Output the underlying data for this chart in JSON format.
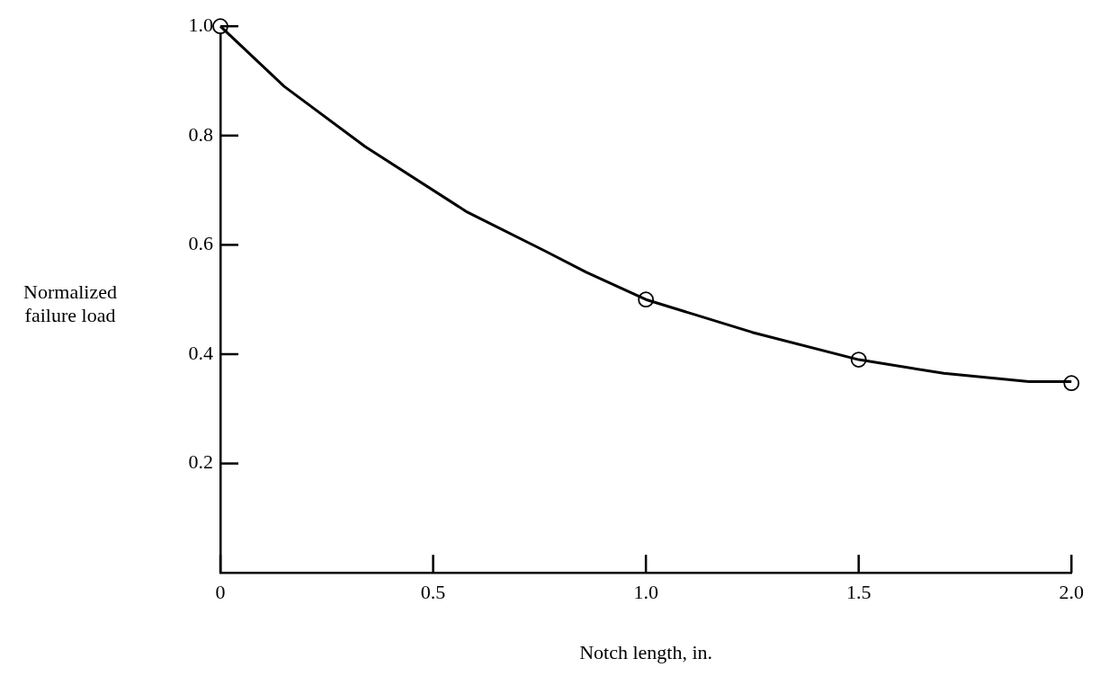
{
  "chart_data": {
    "type": "line",
    "xlabel": "Notch length, in.",
    "ylabel": "Normalized failure load",
    "xlim": [
      0,
      2
    ],
    "xticks": [
      0,
      0.5,
      {
        "value": 1,
        "label": "1.0"
      },
      1.5,
      {
        "value": 2,
        "label": "2.0"
      }
    ],
    "ylim": [
      0,
      1
    ],
    "yticks": [
      0.2,
      0.4,
      0.6,
      0.8,
      {
        "value": 1,
        "label": "1.0"
      }
    ],
    "grid": false,
    "legend": false,
    "series": [
      {
        "color": "#000000",
        "marker": "none",
        "line_style": "solid",
        "x": [
          0,
          0.15,
          0.34,
          0.58,
          0.76,
          0.86,
          1.0,
          1.25,
          1.5,
          1.7,
          1.9,
          2.0
        ],
        "values": [
          1.0,
          0.89,
          0.78,
          0.66,
          0.59,
          0.55,
          0.5,
          0.44,
          0.39,
          0.365,
          0.35,
          0.35
        ]
      },
      {
        "type": "scatter",
        "color": "#000000",
        "marker": "circle",
        "x": [
          0,
          1.0,
          1.5,
          2.0
        ],
        "values": [
          1.0,
          0.5,
          0.39,
          0.347
        ]
      }
    ]
  }
}
